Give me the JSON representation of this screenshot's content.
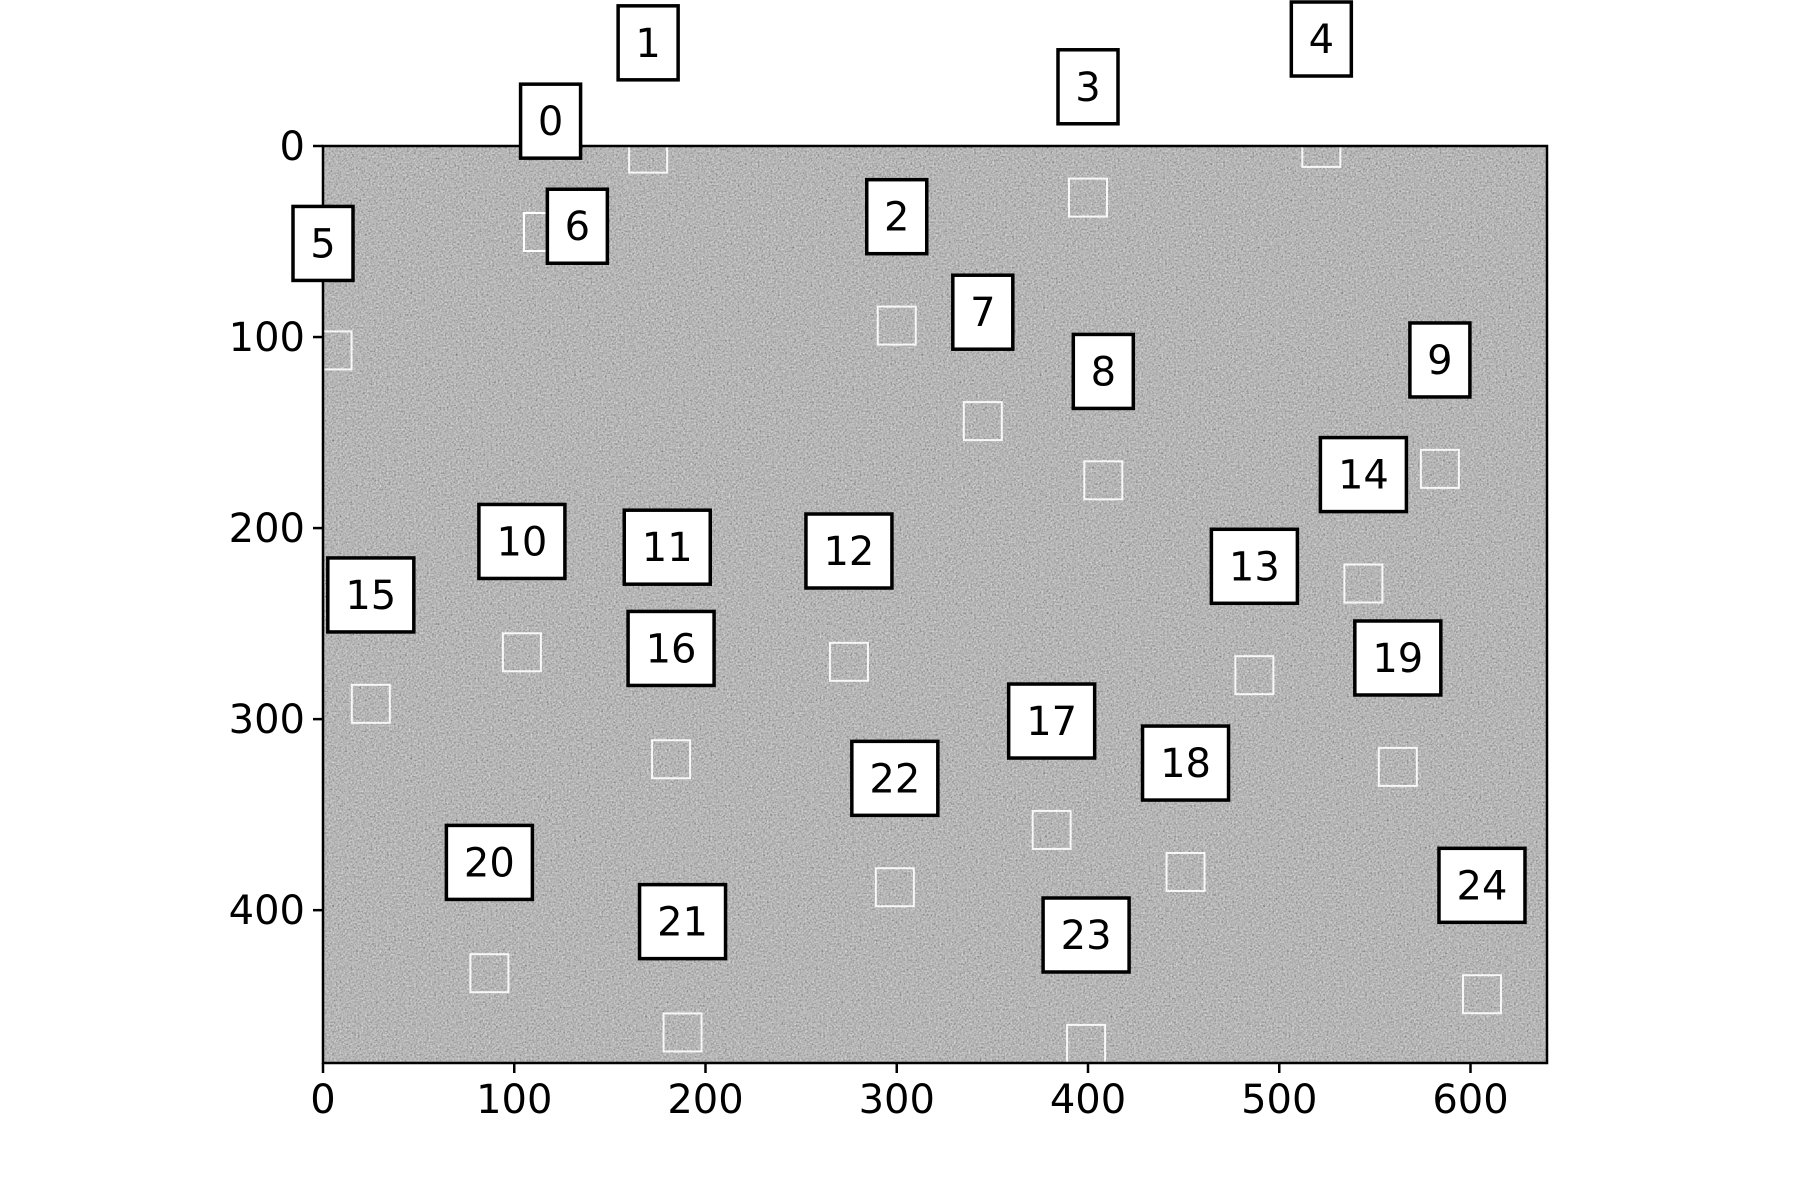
{
  "chart_data": {
    "type": "scatter",
    "title": "",
    "xlabel": "",
    "ylabel": "",
    "xlim": [
      0,
      640
    ],
    "ylim": [
      480,
      0
    ],
    "y_axis_inverted": true,
    "grid": false,
    "image_background": "grayscale noise",
    "x_ticks": [
      0,
      100,
      200,
      300,
      400,
      500,
      600
    ],
    "y_ticks": [
      0,
      100,
      200,
      300,
      400
    ],
    "marker_color": "#ffffff",
    "label_box_color": "#ffffff",
    "label_border_color": "#000000",
    "points": [
      {
        "id": "0",
        "x": 115,
        "y": 45,
        "label_x": 119,
        "label_y": -13
      },
      {
        "id": "1",
        "x": 170,
        "y": 4,
        "label_x": 170,
        "label_y": -54
      },
      {
        "id": "2",
        "x": 300,
        "y": 94,
        "label_x": 300,
        "label_y": 37
      },
      {
        "id": "3",
        "x": 400,
        "y": 27,
        "label_x": 400,
        "label_y": -31
      },
      {
        "id": "4",
        "x": 522,
        "y": 1,
        "label_x": 522,
        "label_y": -56
      },
      {
        "id": "5",
        "x": 5,
        "y": 107,
        "label_x": 0,
        "label_y": 51
      },
      {
        "id": "6",
        "x": 115,
        "y": 45,
        "label_x": 133,
        "label_y": 42
      },
      {
        "id": "7",
        "x": 345,
        "y": 144,
        "label_x": 345,
        "label_y": 87
      },
      {
        "id": "8",
        "x": 408,
        "y": 175,
        "label_x": 408,
        "label_y": 118
      },
      {
        "id": "9",
        "x": 584,
        "y": 169,
        "label_x": 584,
        "label_y": 112
      },
      {
        "id": "10",
        "x": 104,
        "y": 265,
        "label_x": 104,
        "label_y": 207
      },
      {
        "id": "11",
        "x": 180,
        "y": 209,
        "label_x": 180,
        "label_y": 210
      },
      {
        "id": "12",
        "x": 275,
        "y": 270,
        "label_x": 275,
        "label_y": 212
      },
      {
        "id": "13",
        "x": 487,
        "y": 277,
        "label_x": 487,
        "label_y": 220
      },
      {
        "id": "14",
        "x": 544,
        "y": 229,
        "label_x": 544,
        "label_y": 172
      },
      {
        "id": "15",
        "x": 25,
        "y": 292,
        "label_x": 25,
        "label_y": 235
      },
      {
        "id": "16",
        "x": 182,
        "y": 321,
        "label_x": 182,
        "label_y": 263
      },
      {
        "id": "17",
        "x": 381,
        "y": 358,
        "label_x": 381,
        "label_y": 301
      },
      {
        "id": "18",
        "x": 451,
        "y": 380,
        "label_x": 451,
        "label_y": 323
      },
      {
        "id": "19",
        "x": 562,
        "y": 325,
        "label_x": 562,
        "label_y": 268
      },
      {
        "id": "20",
        "x": 87,
        "y": 433,
        "label_x": 87,
        "label_y": 375
      },
      {
        "id": "21",
        "x": 188,
        "y": 464,
        "label_x": 188,
        "label_y": 406
      },
      {
        "id": "22",
        "x": 299,
        "y": 388,
        "label_x": 299,
        "label_y": 331
      },
      {
        "id": "23",
        "x": 399,
        "y": 470,
        "label_x": 399,
        "label_y": 413
      },
      {
        "id": "24",
        "x": 606,
        "y": 444,
        "label_x": 606,
        "label_y": 387
      }
    ]
  }
}
